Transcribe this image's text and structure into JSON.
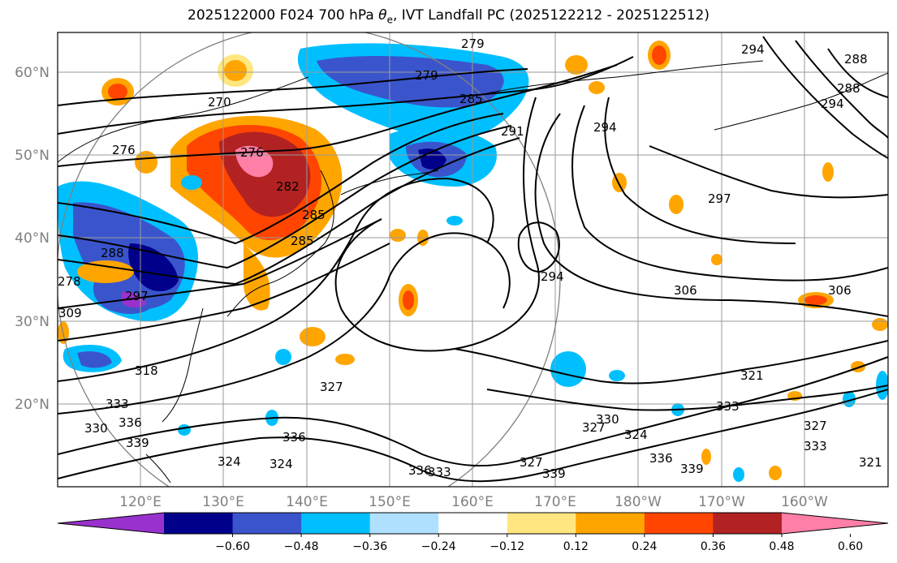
{
  "title": "2025122000 F024 700 hPa θe, IVT Landfall PC (2025122212 - 2025122512)",
  "title_parts": {
    "pre": "2025122000 F024 700 hPa ",
    "theta": "θ",
    "sub": "e",
    "post": ", IVT Landfall PC (2025122212 - 2025122512)"
  },
  "lat_labels": [
    "60°N",
    "50°N",
    "40°N",
    "30°N",
    "20°N"
  ],
  "lon_labels": [
    "120°E",
    "130°E",
    "140°E",
    "150°E",
    "160°E",
    "170°E",
    "180°W",
    "170°W",
    "160°W"
  ],
  "contour_labels": [
    "279",
    "279",
    "270",
    "276",
    "285",
    "291",
    "294",
    "294",
    "288",
    "288",
    "294",
    "297",
    "282",
    "276",
    "285",
    "285",
    "278",
    "288",
    "297",
    "309",
    "294",
    "306",
    "306",
    "321",
    "318",
    "327",
    "330",
    "333",
    "336",
    "330",
    "327",
    "333",
    "324",
    "324",
    "336",
    "339",
    "333",
    "336",
    "339",
    "327",
    "324",
    "327",
    "321",
    "333",
    "339",
    "336"
  ],
  "colorbar": {
    "ticks": [
      "−0.60",
      "−0.48",
      "−0.36",
      "−0.24",
      "−0.12",
      "0.12",
      "0.24",
      "0.36",
      "0.48",
      "0.60"
    ],
    "colors": [
      "#9932cc",
      "#00008b",
      "#3a55cc",
      "#00bfff",
      "#b0e0ff",
      "#ffffff",
      "#ffe680",
      "#ffa500",
      "#ff4500",
      "#b22222",
      "#ff7fa6"
    ]
  }
}
